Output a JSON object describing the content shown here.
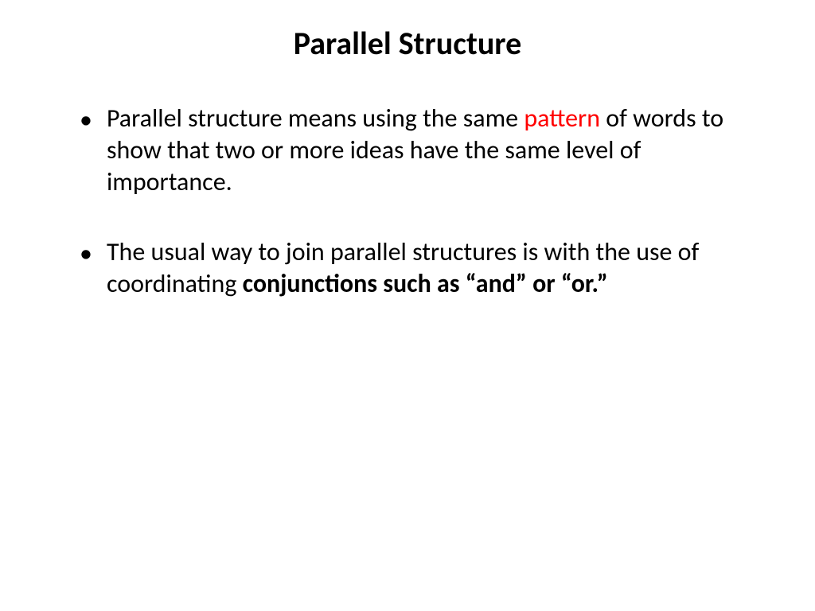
{
  "slide": {
    "title": "Parallel Structure",
    "title_fontsize": 40,
    "title_color": "#000000",
    "background_color": "#ffffff",
    "body_fontsize": 32,
    "body_color": "#000000",
    "highlight_color": "#ff0000",
    "bullets": [
      {
        "segments": [
          {
            "text": "Parallel structure means using the same ",
            "style": "normal"
          },
          {
            "text": "pattern",
            "style": "highlight"
          },
          {
            "text": " of words to show that two or more ideas have the same level of importance.",
            "style": "normal"
          }
        ]
      },
      {
        "segments": [
          {
            "text": "The usual way to join parallel structures is with the use of coordinating ",
            "style": "normal"
          },
          {
            "text": "conjunctions such as “and” or “or.”",
            "style": "bold"
          }
        ]
      }
    ]
  }
}
